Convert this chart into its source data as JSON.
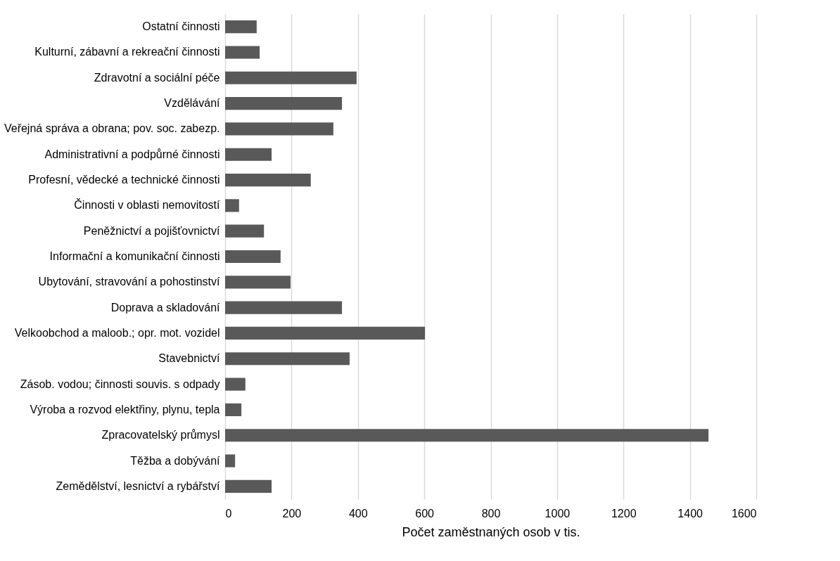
{
  "chart_data": {
    "type": "bar",
    "orientation": "horizontal",
    "xlabel": "Počet zaměstnaných osob v tis.",
    "categories": [
      "Ostatní činnosti",
      "Kulturní, zábavní a rekreační činnosti",
      "Zdravotní a sociální péče",
      "Vzdělávání",
      "Veřejná správa a obrana; pov. soc. zabezp.",
      "Administrativní a podpůrné činnosti",
      "Profesní, vědecké a technické činnosti",
      "Činnosti v oblasti nemovitostí",
      "Peněžnictví a pojišťovnictví",
      "Informační a komunikační činnosti",
      "Ubytování, stravování a pohostinství",
      "Doprava a skladování",
      "Velkoobchod a maloob.; opr. mot. vozidel",
      "Stavebnictví",
      "Zásob. vodou; činnosti souvis. s odpady",
      "Výroba a rozvod elektřiny, plynu, tepla",
      "Zpracovatelský průmysl",
      "Těžba a dobývání",
      "Zemědělství, lesnictví a rybářství"
    ],
    "values": [
      95,
      104,
      396,
      352,
      326,
      140,
      258,
      42,
      117,
      167,
      197,
      352,
      602,
      375,
      61,
      49,
      1456,
      30,
      140
    ],
    "color": "#595959",
    "xlim": [
      0,
      1600
    ],
    "xticks": [
      0,
      200,
      400,
      600,
      800,
      1000,
      1200,
      1400,
      1600
    ],
    "grid": "x"
  }
}
